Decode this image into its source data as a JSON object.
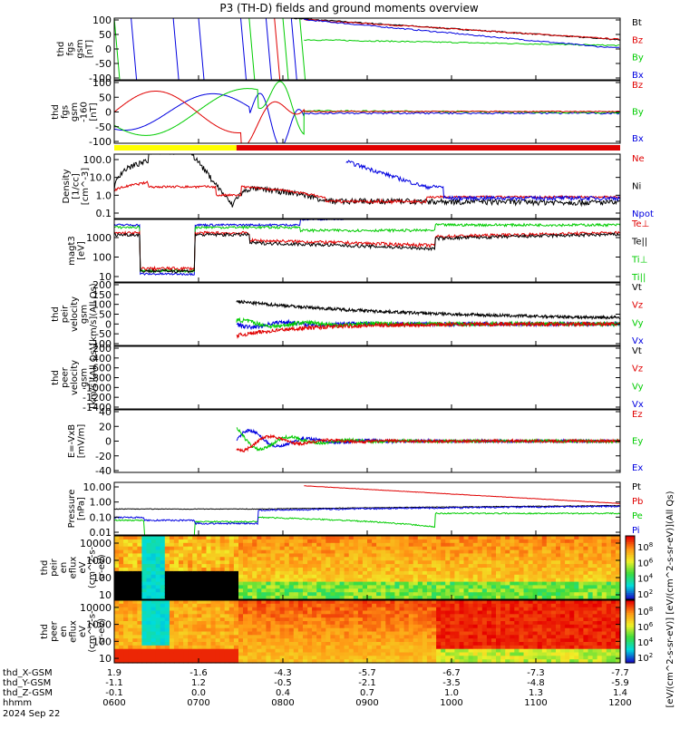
{
  "title": "P3 (TH-D) fields and ground moments overview",
  "chart_data": {
    "type": "line",
    "title": "P3 (TH-D) fields and ground moments overview",
    "x_axis": {
      "time_ticks": [
        "0600",
        "0700",
        "0800",
        "0900",
        "1000",
        "1100",
        "1200"
      ],
      "rows": [
        {
          "label": "thd_X-GSM",
          "values": [
            "1.9",
            "-1.6",
            "-4.3",
            "-5.7",
            "-6.7",
            "-7.3",
            "-7.7"
          ]
        },
        {
          "label": "thd_Y-GSM",
          "values": [
            "-1.1",
            "1.2",
            "-0.5",
            "-2.1",
            "-3.5",
            "-4.8",
            "-5.9"
          ]
        },
        {
          "label": "thd_Z-GSM",
          "values": [
            "-0.1",
            "0.0",
            "0.4",
            "0.7",
            "1.0",
            "1.3",
            "1.4"
          ]
        },
        {
          "label": "hhmm",
          "values": [
            "0600",
            "0700",
            "0800",
            "0900",
            "1000",
            "1100",
            "1200"
          ]
        }
      ],
      "date": "2024 Sep 22"
    },
    "panels": [
      {
        "name": "fgs",
        "ylabel": [
          "thd",
          "fgs",
          "gsm",
          "[nT]"
        ],
        "yticks": [
          "100",
          "50",
          "0",
          "-50",
          "-100"
        ],
        "ylim": [
          -100,
          100
        ],
        "legend": [
          {
            "name": "Bt",
            "color": "#000000"
          },
          {
            "name": "Bz",
            "color": "#e00000"
          },
          {
            "name": "By",
            "color": "#00cc00"
          },
          {
            "name": "Bx",
            "color": "#0000e0"
          }
        ]
      },
      {
        "name": "fgs-dsl",
        "ylabel": [
          "thd",
          "fgs",
          "gsm",
          "-160",
          "[nT]"
        ],
        "yticks": [
          "100",
          "50",
          "0",
          "-50",
          "-100"
        ],
        "ylim": [
          -120,
          120
        ],
        "legend": [
          {
            "name": "Bz",
            "color": "#e00000"
          },
          {
            "name": "By",
            "color": "#00cc00"
          },
          {
            "name": "Bx",
            "color": "#0000e0"
          }
        ]
      },
      {
        "name": "density",
        "ylabel": [
          "Density",
          "[1/cc]",
          "[cm^-3]"
        ],
        "yticks": [
          "100.0",
          "10.0",
          "1.0",
          "0.1"
        ],
        "log": true,
        "legend": [
          {
            "name": "Ne",
            "color": "#e00000"
          },
          {
            "name": "Ni",
            "color": "#000000"
          },
          {
            "name": "Npot",
            "color": "#0000e0"
          }
        ]
      },
      {
        "name": "temperature",
        "ylabel": [
          "magt3",
          "[eV]"
        ],
        "yticks": [
          "1000",
          "100",
          "10"
        ],
        "log": true,
        "legend": [
          {
            "name": "Te⊥",
            "color": "#e00000"
          },
          {
            "name": "Te||",
            "color": "#000000"
          },
          {
            "name": "Ti⊥",
            "color": "#00cc00"
          },
          {
            "name": "Ti||",
            "color": "#00cc00"
          }
        ]
      },
      {
        "name": "peir-velocity",
        "ylabel": [
          "thd",
          "peir",
          "velocity",
          "gsm",
          "[km/s](All Qs)"
        ],
        "yticks": [
          "200",
          "150",
          "100",
          "50",
          "0",
          "-50",
          "-100"
        ],
        "ylim": [
          -100,
          200
        ],
        "legend": [
          {
            "name": "Vt",
            "color": "#000000"
          },
          {
            "name": "Vz",
            "color": "#e00000"
          },
          {
            "name": "Vy",
            "color": "#00cc00"
          },
          {
            "name": "Vx",
            "color": "#0000e0"
          }
        ]
      },
      {
        "name": "peer-velocity",
        "ylabel": [
          "thd",
          "peer",
          "velocity",
          "gsm",
          "[km/s](All Qs)"
        ],
        "yticks": [
          "-200",
          "-400",
          "-600",
          "-800",
          "-1000",
          "-1200",
          "-1400"
        ],
        "ylim": [
          -1400,
          0
        ],
        "legend": [
          {
            "name": "Vt",
            "color": "#000000"
          },
          {
            "name": "Vz",
            "color": "#e00000"
          },
          {
            "name": "Vy",
            "color": "#00cc00"
          },
          {
            "name": "Vx",
            "color": "#0000e0"
          }
        ]
      },
      {
        "name": "efield",
        "ylabel": [
          "E=-VxB",
          "[mV/m]"
        ],
        "yticks": [
          "40",
          "20",
          "0",
          "-20",
          "-40"
        ],
        "ylim": [
          -40,
          40
        ],
        "legend": [
          {
            "name": "Ez",
            "color": "#e00000"
          },
          {
            "name": "Ey",
            "color": "#00cc00"
          },
          {
            "name": "Ex",
            "color": "#0000e0"
          }
        ]
      },
      {
        "name": "pressure",
        "ylabel": [
          "Pressure",
          "[nPa]"
        ],
        "yticks": [
          "10.00",
          "1.00",
          "0.10",
          "0.01"
        ],
        "log": true,
        "legend": [
          {
            "name": "Pt",
            "color": "#000000"
          },
          {
            "name": "Pb",
            "color": "#e00000"
          },
          {
            "name": "Pe",
            "color": "#00cc00"
          },
          {
            "name": "Pi",
            "color": "#0000e0"
          }
        ]
      },
      {
        "name": "peir-spectrogram",
        "ylabel": [
          "thd",
          "peir",
          "en",
          "eflux",
          "eV",
          "(cm^2-s-",
          "sr-eV)"
        ],
        "yticks": [
          "10000",
          "1000",
          "100",
          "10"
        ],
        "type": "heatmap"
      },
      {
        "name": "peer-spectrogram",
        "ylabel": [
          "thd",
          "peer",
          "en",
          "eflux",
          "eV",
          "(cm^2-s-",
          "sr-eV)"
        ],
        "yticks": [
          "10000",
          "1000",
          "100",
          "10"
        ],
        "type": "heatmap"
      }
    ],
    "colorbar": {
      "ticks": [
        "10^8",
        "10^6",
        "10^4",
        "10^2"
      ],
      "label": "[eV/(cm^2-s-sr-eV)] [eV/(cm^2-s-sr-eV)](All Qs)"
    }
  }
}
